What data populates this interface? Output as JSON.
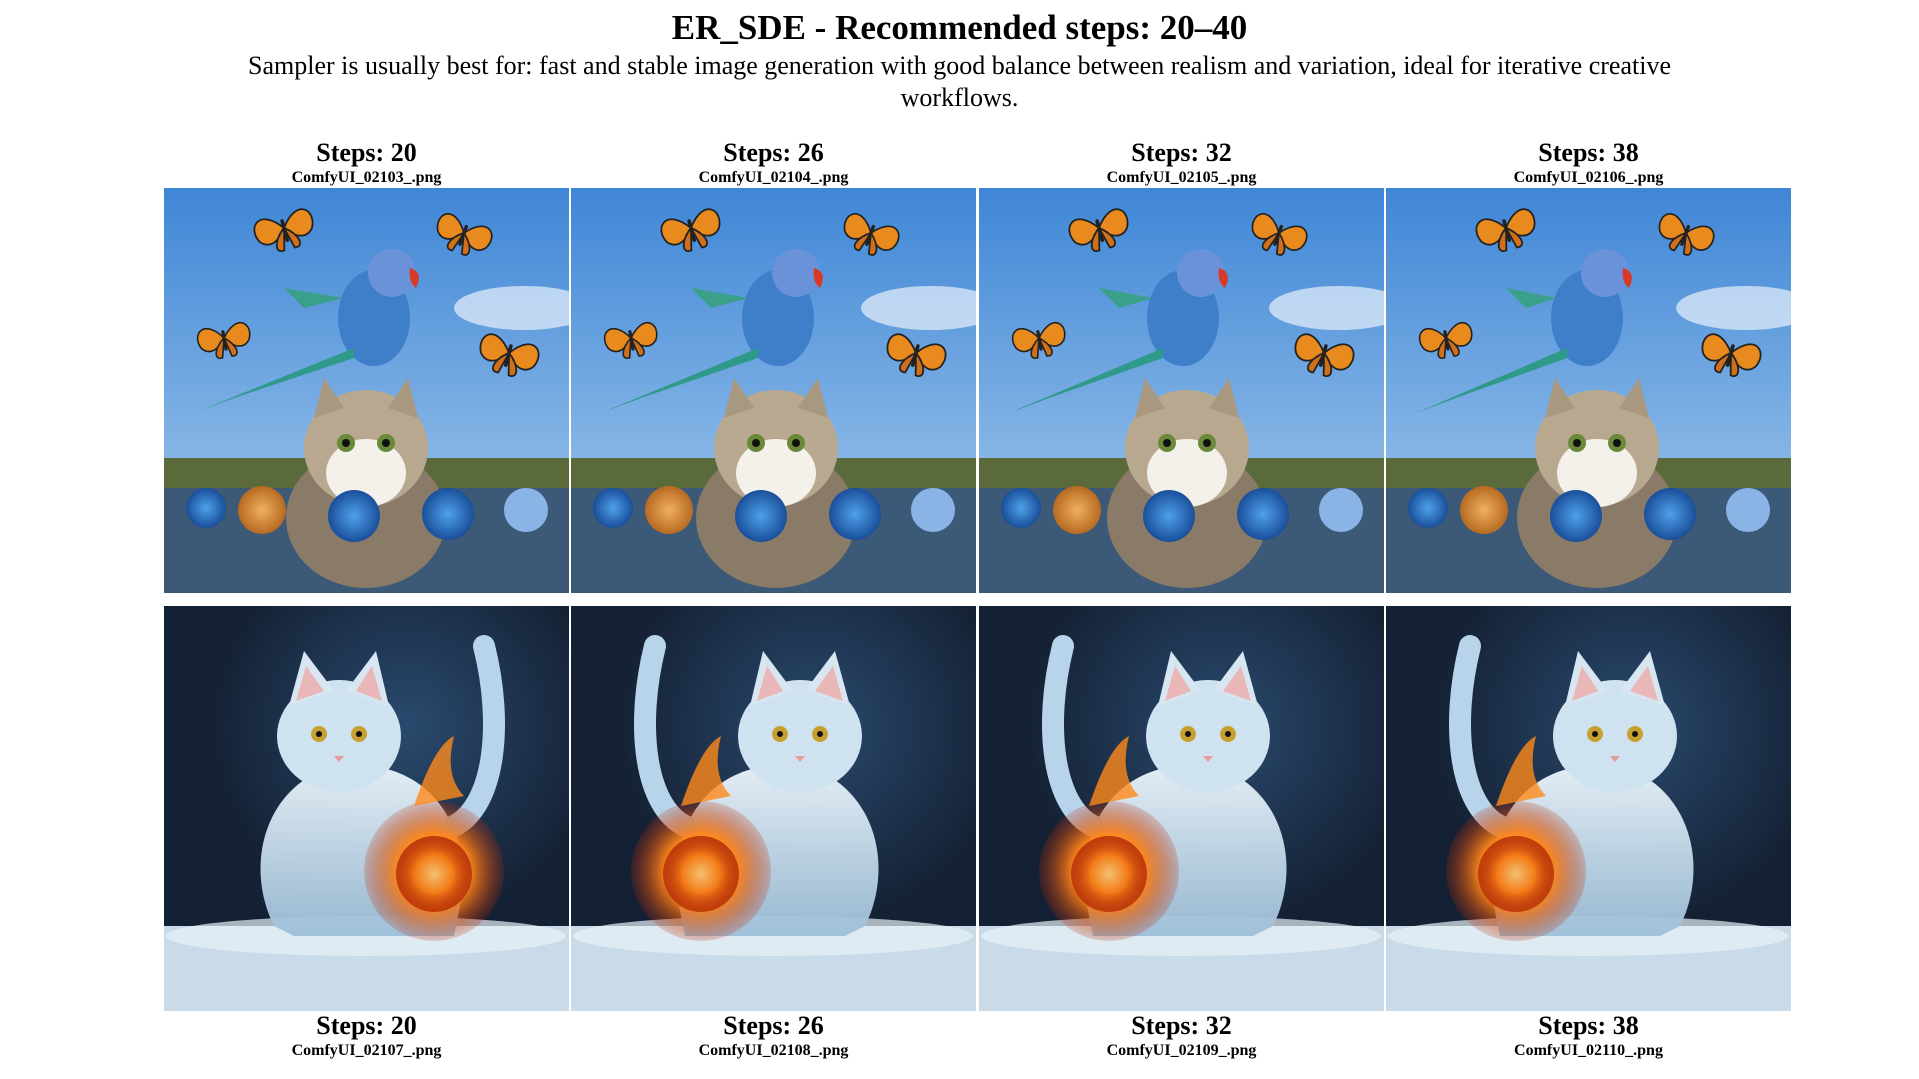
{
  "header": {
    "title": "ER_SDE - Recommended steps: 20–40",
    "subtitle": "Sampler is usually best for: fast and stable image generation with good balance between realism and variation, ideal for iterative creative workflows."
  },
  "row1": [
    {
      "steps": "Steps: 20",
      "file": "ComfyUI_02103_.png",
      "image": "parrot-cat-butterflies-image"
    },
    {
      "steps": "Steps: 26",
      "file": "ComfyUI_02104_.png",
      "image": "parrot-cat-butterflies-image"
    },
    {
      "steps": "Steps: 32",
      "file": "ComfyUI_02105_.png",
      "image": "parrot-cat-butterflies-image"
    },
    {
      "steps": "Steps: 38",
      "file": "ComfyUI_02106_.png",
      "image": "parrot-cat-butterflies-image"
    }
  ],
  "row2": [
    {
      "steps": "Steps: 20",
      "file": "ComfyUI_02107_.png",
      "image": "ice-cat-fireball-image"
    },
    {
      "steps": "Steps: 26",
      "file": "ComfyUI_02108_.png",
      "image": "ice-cat-fireball-image"
    },
    {
      "steps": "Steps: 32",
      "file": "ComfyUI_02109_.png",
      "image": "ice-cat-fireball-image"
    },
    {
      "steps": "Steps: 38",
      "file": "ComfyUI_02110_.png",
      "image": "ice-cat-fireball-image"
    }
  ],
  "colors": {
    "sky": "#5b9fe0",
    "ground": "#5a6a3a",
    "water": "#3c5a78",
    "parrot": "#3f7fc9",
    "butterfly": "#e88a1e",
    "ice_bg": "#142033",
    "ice_cat": "#cfe2f0",
    "fire": "#ff8a1a"
  }
}
